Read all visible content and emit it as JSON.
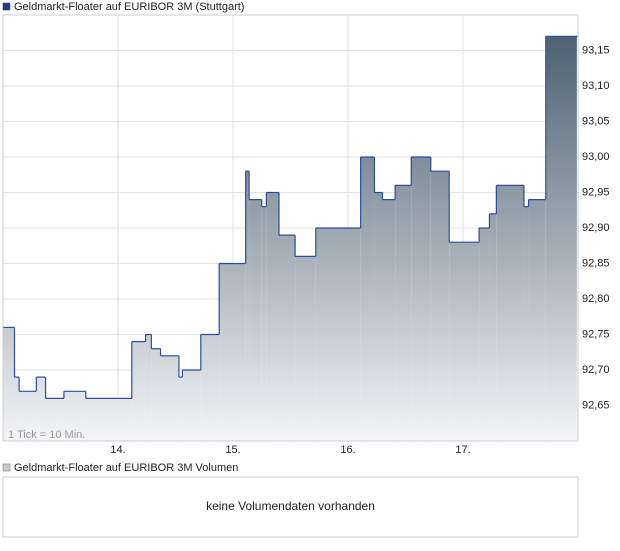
{
  "chart_data": {
    "type": "line",
    "step": true,
    "area": true,
    "grid": true,
    "annotation": "1 Tick = 10 Min.",
    "x": [
      13.0,
      13.1,
      13.14,
      13.29,
      13.37,
      13.53,
      13.72,
      14.12,
      14.24,
      14.29,
      14.37,
      14.53,
      14.56,
      14.72,
      14.88,
      15.11,
      15.14,
      15.25,
      15.29,
      15.4,
      15.54,
      15.72,
      16.11,
      16.23,
      16.3,
      16.41,
      16.55,
      16.72,
      16.88,
      17.14,
      17.23,
      17.29,
      17.53,
      17.57,
      17.72,
      17.99
    ],
    "series": [
      {
        "name": "Geldmarkt-Floater auf EURIBOR 3M (Stuttgart)",
        "color": "#2b4c9b",
        "area_colors": [
          "#44596b",
          "#f4f5f7"
        ],
        "values": [
          92.76,
          92.69,
          92.67,
          92.69,
          92.66,
          92.67,
          92.66,
          92.74,
          92.75,
          92.73,
          92.72,
          92.69,
          92.7,
          92.75,
          92.85,
          92.98,
          92.94,
          92.93,
          92.95,
          92.89,
          92.86,
          92.9,
          93.0,
          92.95,
          92.94,
          92.96,
          93.0,
          92.98,
          92.88,
          92.9,
          92.92,
          92.96,
          92.93,
          92.94,
          93.17,
          93.17
        ]
      }
    ],
    "xlim": [
      13,
      18
    ],
    "xticks": [
      {
        "value": 14,
        "label": "14."
      },
      {
        "value": 15,
        "label": "15."
      },
      {
        "value": 16,
        "label": "16."
      },
      {
        "value": 17,
        "label": "17."
      }
    ],
    "ylim": [
      92.6,
      93.2
    ],
    "yticks": [
      {
        "value": 92.65,
        "label": "92,65"
      },
      {
        "value": 92.7,
        "label": "92,70"
      },
      {
        "value": 92.75,
        "label": "92,75"
      },
      {
        "value": 92.8,
        "label": "92,80"
      },
      {
        "value": 92.85,
        "label": "92,85"
      },
      {
        "value": 92.9,
        "label": "92,90"
      },
      {
        "value": 92.95,
        "label": "92,95"
      },
      {
        "value": 93.0,
        "label": "93,00"
      },
      {
        "value": 93.05,
        "label": "93,05"
      },
      {
        "value": 93.1,
        "label": "93,10"
      },
      {
        "value": 93.15,
        "label": "93,15"
      }
    ]
  },
  "volume_panel": {
    "legend": "Geldmarkt-Floater auf EURIBOR 3M Volumen",
    "message": "keine Volumendaten vorhanden"
  }
}
